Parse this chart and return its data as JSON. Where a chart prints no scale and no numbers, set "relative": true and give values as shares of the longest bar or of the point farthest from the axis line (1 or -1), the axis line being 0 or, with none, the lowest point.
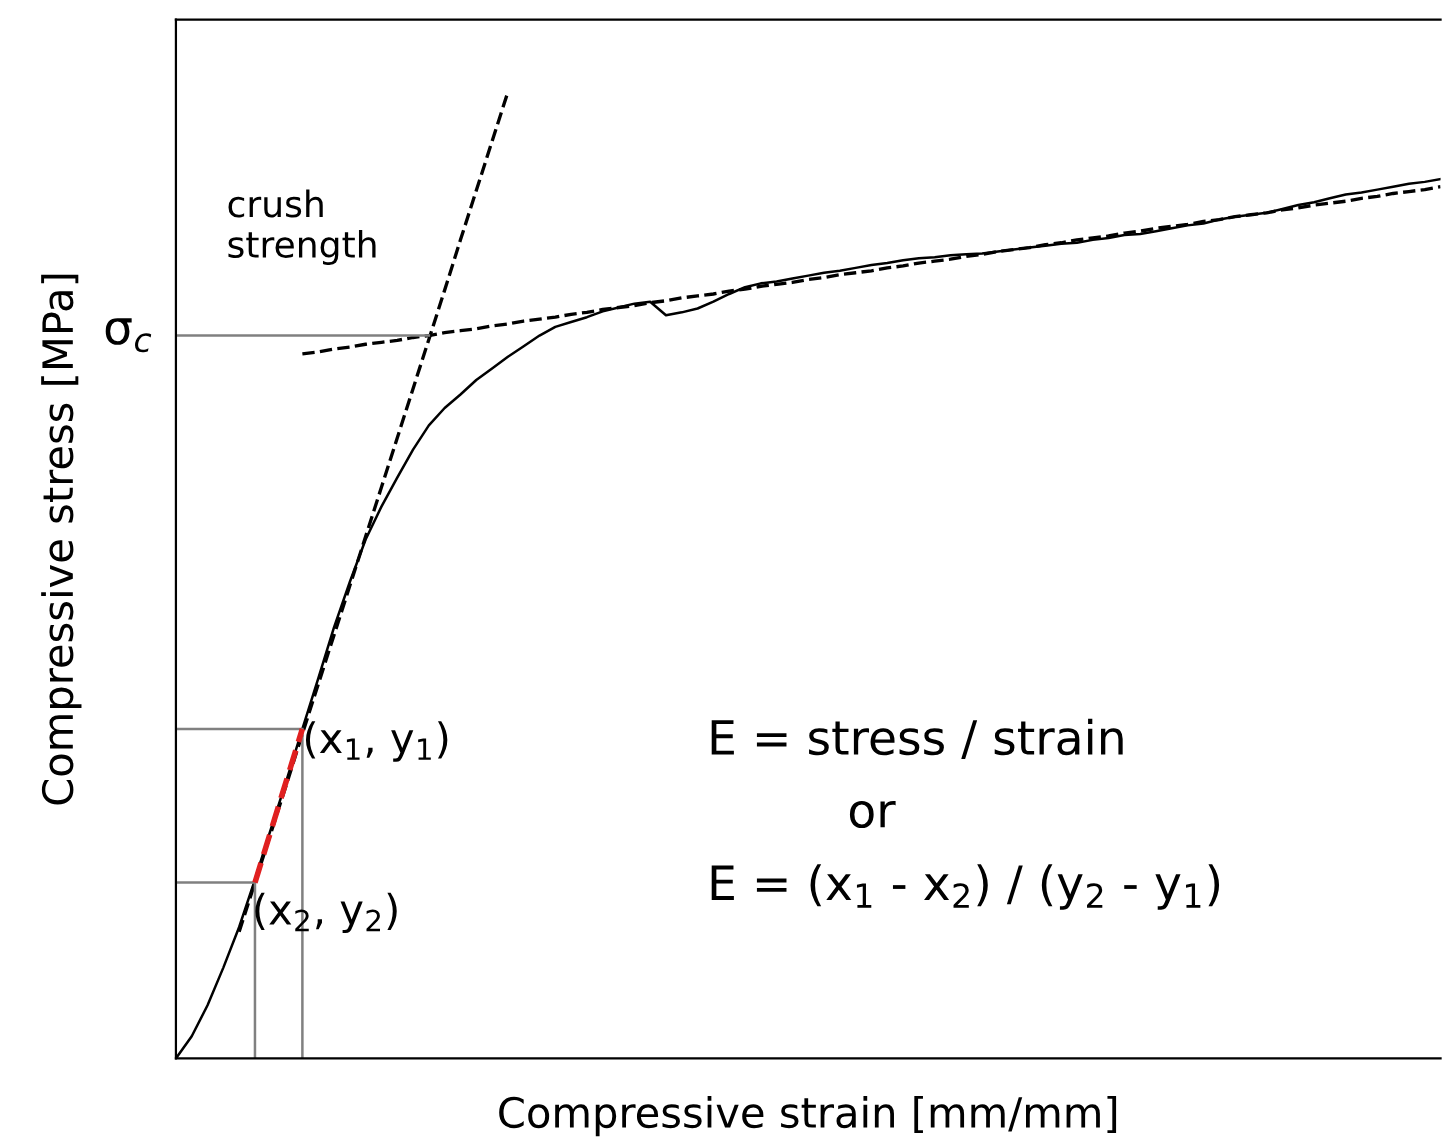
{
  "chart_data": {
    "type": "line",
    "relative": true,
    "xlabel": "Compressive strain [mm/mm]",
    "ylabel": "Compressive stress [MPa]",
    "categories": [
      null,
      null,
      null,
      null,
      null,
      null,
      null,
      null,
      null,
      null,
      null,
      null,
      null,
      null,
      null,
      null,
      null,
      null,
      null,
      null,
      null,
      null,
      null,
      null,
      null,
      null,
      null,
      null,
      null,
      null,
      null,
      null,
      null,
      null,
      null,
      null,
      null,
      null,
      null,
      null,
      null,
      null,
      null,
      null,
      null,
      null,
      null,
      null,
      null,
      null,
      null,
      null,
      null,
      null,
      null,
      null,
      null,
      null,
      null,
      null,
      null,
      null,
      null,
      null,
      null,
      null,
      null,
      null,
      null,
      null,
      null,
      null,
      null,
      null,
      null,
      null,
      null,
      null,
      null,
      null,
      null
    ],
    "series": [
      {
        "color": "#000000",
        "line_style": "solid",
        "values": [
          0,
          0.023,
          0.055,
          0.094,
          0.136,
          0.185,
          0.237,
          0.288,
          0.341,
          0.393,
          0.446,
          0.493,
          0.537,
          0.571,
          0.601,
          0.63,
          0.655,
          0.673,
          0.687,
          0.702,
          0.714,
          0.726,
          0.737,
          0.748,
          0.757,
          0.762,
          0.767,
          0.773,
          0.777,
          0.781,
          0.783,
          0.769,
          0.772,
          0.776,
          0.783,
          0.791,
          0.798,
          0.802,
          0.804,
          0.807,
          0.81,
          0.813,
          0.815,
          0.818,
          0.821,
          0.823,
          0.826,
          0.828,
          0.829,
          0.831,
          0.832,
          0.833,
          0.835,
          0.837,
          0.839,
          0.841,
          0.843,
          0.844,
          0.847,
          0.849,
          0.852,
          0.853,
          0.856,
          0.859,
          0.862,
          0.864,
          0.868,
          0.871,
          0.873,
          0.875,
          0.879,
          0.883,
          0.886,
          0.89,
          0.894,
          0.896,
          0.899,
          0.902,
          0.905,
          0.907,
          0.91
        ]
      },
      {
        "color": "#000000",
        "line_style": "dashed",
        "values": [
          null,
          null,
          null,
          null,
          0.131,
          0.182,
          0.233,
          0.284,
          0.336,
          0.387,
          0.438,
          0.489,
          0.54,
          0.591,
          0.642,
          0.693,
          0.744,
          0.795,
          0.847,
          0.898,
          0.949,
          1.0,
          null,
          null,
          null,
          null,
          null,
          null,
          null,
          null,
          null,
          null,
          null,
          null,
          null,
          null,
          null,
          null,
          null,
          null,
          null,
          null,
          null,
          null,
          null,
          null,
          null,
          null,
          null,
          null,
          null,
          null,
          null,
          null,
          null,
          null,
          null,
          null,
          null,
          null,
          null,
          null,
          null,
          null,
          null,
          null,
          null,
          null,
          null,
          null,
          null,
          null,
          null,
          null,
          null,
          null,
          null,
          null,
          null,
          null,
          null
        ]
      },
      {
        "color": "#000000",
        "line_style": "dashed",
        "values": [
          null,
          null,
          null,
          null,
          null,
          null,
          null,
          null,
          0.729,
          0.731,
          0.734,
          0.736,
          0.739,
          0.741,
          0.743,
          0.746,
          0.748,
          0.751,
          0.753,
          0.755,
          0.758,
          0.76,
          0.763,
          0.765,
          0.767,
          0.77,
          0.772,
          0.775,
          0.777,
          0.779,
          0.782,
          0.784,
          0.787,
          0.789,
          0.791,
          0.794,
          0.796,
          0.799,
          0.801,
          0.803,
          0.806,
          0.808,
          0.811,
          0.813,
          0.815,
          0.818,
          0.82,
          0.823,
          0.825,
          0.827,
          0.83,
          0.832,
          0.835,
          0.837,
          0.839,
          0.842,
          0.844,
          0.847,
          0.849,
          0.851,
          0.854,
          0.856,
          0.859,
          0.861,
          0.863,
          0.866,
          0.868,
          0.871,
          0.873,
          0.875,
          0.878,
          0.88,
          0.883,
          0.885,
          0.887,
          0.89,
          0.892,
          0.895,
          0.897,
          0.899,
          0.902
        ]
      },
      {
        "color": "#808080",
        "line_style": "solid",
        "values": [
          0.748,
          0.748,
          0.748,
          0.748,
          0.748,
          0.748,
          0.748,
          0.748,
          0.748,
          0.748,
          0.748,
          0.748,
          0.748,
          0.748,
          0.748,
          0.748,
          0.748,
          null,
          null,
          null,
          null,
          null,
          null,
          null,
          null,
          null,
          null,
          null,
          null,
          null,
          null,
          null,
          null,
          null,
          null,
          null,
          null,
          null,
          null,
          null,
          null,
          null,
          null,
          null,
          null,
          null,
          null,
          null,
          null,
          null,
          null,
          null,
          null,
          null,
          null,
          null,
          null,
          null,
          null,
          null,
          null,
          null,
          null,
          null,
          null,
          null,
          null,
          null,
          null,
          null,
          null,
          null,
          null,
          null,
          null,
          null,
          null,
          null,
          null,
          null,
          null
        ]
      },
      {
        "color": "#808080",
        "line_style": "solid",
        "values": [
          0.341,
          0.341,
          0.341,
          0.341,
          0.341,
          0.341,
          0.341,
          0.341,
          0.341,
          null,
          null,
          null,
          null,
          null,
          null,
          null,
          null,
          null,
          null,
          null,
          null,
          null,
          null,
          null,
          null,
          null,
          null,
          null,
          null,
          null,
          null,
          null,
          null,
          null,
          null,
          null,
          null,
          null,
          null,
          null,
          null,
          null,
          null,
          null,
          null,
          null,
          null,
          null,
          null,
          null,
          null,
          null,
          null,
          null,
          null,
          null,
          null,
          null,
          null,
          null,
          null,
          null,
          null,
          null,
          null,
          null,
          null,
          null,
          null,
          null,
          null,
          null,
          null,
          null,
          null,
          null,
          null,
          null,
          null,
          null,
          null
        ]
      },
      {
        "color": "#808080",
        "line_style": "solid",
        "values": [
          0.182,
          0.182,
          0.182,
          0.182,
          0.182,
          0.182,
          null,
          null,
          null,
          null,
          null,
          null,
          null,
          null,
          null,
          null,
          null,
          null,
          null,
          null,
          null,
          null,
          null,
          null,
          null,
          null,
          null,
          null,
          null,
          null,
          null,
          null,
          null,
          null,
          null,
          null,
          null,
          null,
          null,
          null,
          null,
          null,
          null,
          null,
          null,
          null,
          null,
          null,
          null,
          null,
          null,
          null,
          null,
          null,
          null,
          null,
          null,
          null,
          null,
          null,
          null,
          null,
          null,
          null,
          null,
          null,
          null,
          null,
          null,
          null,
          null,
          null,
          null,
          null,
          null,
          null,
          null,
          null,
          null,
          null,
          null
        ]
      },
      {
        "color": "#e02020",
        "line_style": "dashed",
        "values": [
          null,
          null,
          null,
          null,
          null,
          0.182,
          0.235,
          0.288,
          0.341,
          null,
          null,
          null,
          null,
          null,
          null,
          null,
          null,
          null,
          null,
          null,
          null,
          null,
          null,
          null,
          null,
          null,
          null,
          null,
          null,
          null,
          null,
          null,
          null,
          null,
          null,
          null,
          null,
          null,
          null,
          null,
          null,
          null,
          null,
          null,
          null,
          null,
          null,
          null,
          null,
          null,
          null,
          null,
          null,
          null,
          null,
          null,
          null,
          null,
          null,
          null,
          null,
          null,
          null,
          null,
          null,
          null,
          null,
          null,
          null,
          null,
          null,
          null,
          null,
          null,
          null,
          null,
          null,
          null,
          null,
          null,
          null
        ]
      }
    ],
    "annotations": [
      "σ$_{c}$",
      "crush\nstrength",
      "(x$_{1}$, y$_{1}$)",
      "(x$_{2}$, y$_{2}$)",
      "E = stress / strain",
      "or",
      "E = (x$_{1}$ - x$_{2}$) / (y$_{2}$ - y$_{1}$)"
    ]
  }
}
